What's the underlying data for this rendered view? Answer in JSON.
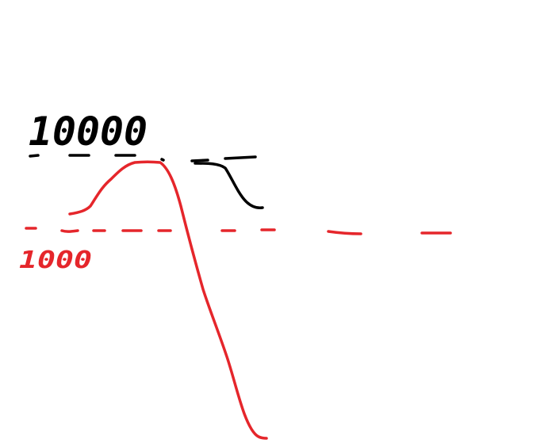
{
  "labels": {
    "upper_level": "10000",
    "lower_level": "1000"
  },
  "colors": {
    "black_ink": "#000000",
    "red_ink": "#e5262b",
    "background": "#ffffff"
  }
}
